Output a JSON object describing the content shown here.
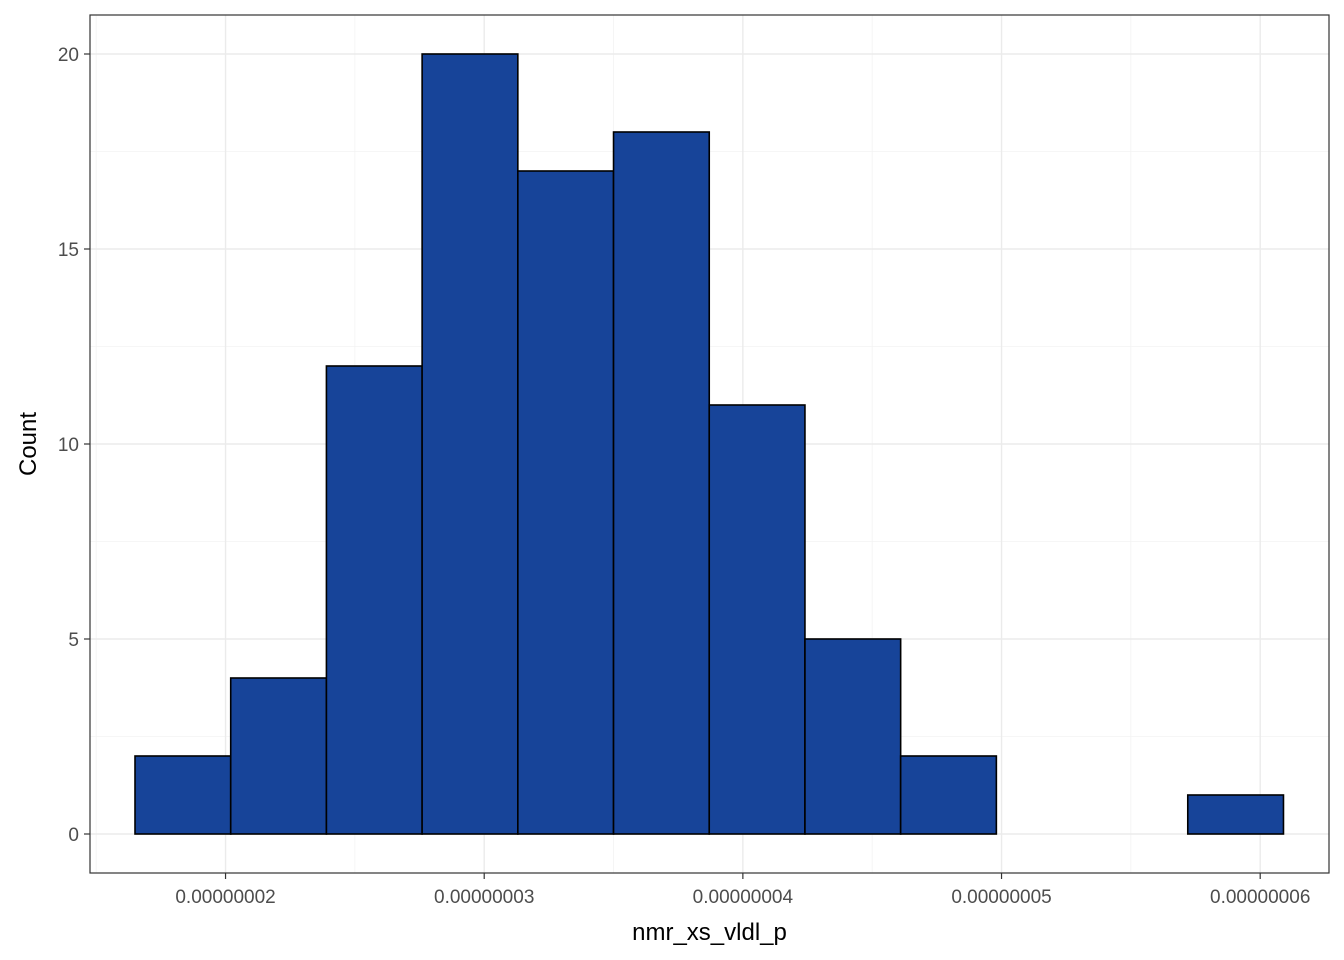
{
  "chart_data": {
    "type": "bar",
    "subtype": "histogram",
    "title": "",
    "xlabel": "nmr_xs_vldl_p",
    "ylabel": "Count",
    "bins": [
      {
        "x0": 1.65e-08,
        "x1": 2.02e-08,
        "count": 2
      },
      {
        "x0": 2.02e-08,
        "x1": 2.39e-08,
        "count": 4
      },
      {
        "x0": 2.39e-08,
        "x1": 2.76e-08,
        "count": 12
      },
      {
        "x0": 2.76e-08,
        "x1": 3.13e-08,
        "count": 20
      },
      {
        "x0": 3.13e-08,
        "x1": 3.5e-08,
        "count": 17
      },
      {
        "x0": 3.5e-08,
        "x1": 3.87e-08,
        "count": 18
      },
      {
        "x0": 3.87e-08,
        "x1": 4.24e-08,
        "count": 11
      },
      {
        "x0": 4.24e-08,
        "x1": 4.61e-08,
        "count": 5
      },
      {
        "x0": 4.61e-08,
        "x1": 4.98e-08,
        "count": 2
      },
      {
        "x0": 4.98e-08,
        "x1": 5.35e-08,
        "count": 0
      },
      {
        "x0": 5.35e-08,
        "x1": 5.72e-08,
        "count": 0
      },
      {
        "x0": 5.72e-08,
        "x1": 6.09e-08,
        "count": 1
      }
    ],
    "xlim": [
      1.476e-08,
      6.266e-08
    ],
    "ylim": [
      -1,
      21
    ],
    "x_ticks": [
      2e-08,
      3e-08,
      4e-08,
      5e-08,
      6e-08
    ],
    "x_tick_labels": [
      "0.00000002",
      "0.00000003",
      "0.00000004",
      "0.00000005",
      "0.00000006"
    ],
    "y_ticks": [
      0,
      5,
      10,
      15,
      20
    ],
    "y_tick_labels": [
      "0",
      "5",
      "10",
      "15",
      "20"
    ],
    "grid": true,
    "legend": "none",
    "bar_fill": "#174499",
    "bar_outline": "#000000"
  }
}
